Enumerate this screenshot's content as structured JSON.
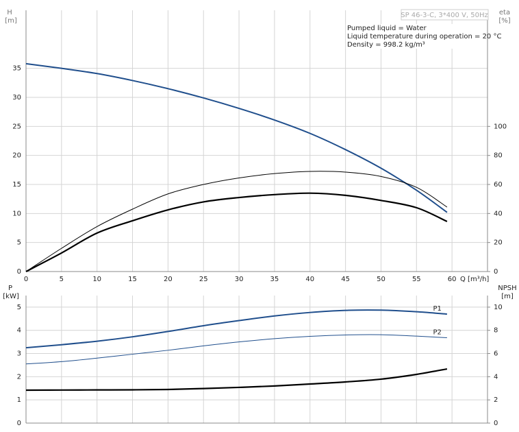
{
  "chart_data": [
    {
      "type": "line",
      "title": "SP 46-3-C, 3*400 V, 50Hz",
      "annotations": [
        "Pumped liquid = Water",
        "Liquid temperature during operation = 20 °C",
        "Density = 998.2 kg/m³"
      ],
      "x_label": "Q [m³/h]",
      "y_label": "H",
      "y_unit": "[m]",
      "y2_label": "eta",
      "y2_unit": "[%]",
      "x": [
        0,
        5,
        10,
        15,
        20,
        25,
        30,
        35,
        40,
        45,
        50,
        55,
        59.3
      ],
      "xlim": [
        0,
        65
      ],
      "xticks": [
        0,
        5,
        10,
        15,
        20,
        25,
        30,
        35,
        40,
        45,
        50,
        55,
        60
      ],
      "ylim": [
        0,
        45
      ],
      "yticks": [
        0,
        5,
        10,
        15,
        20,
        25,
        30,
        35
      ],
      "y2lim": [
        0,
        180
      ],
      "y2ticks": [
        0,
        20,
        40,
        60,
        80,
        100
      ],
      "grid": true,
      "series": [
        {
          "color": "#1f4e8c",
          "linewidth": 2,
          "values": [
            35.8,
            35,
            34.1,
            32.9,
            31.5,
            29.9,
            28.1,
            26.1,
            23.8,
            21,
            17.8,
            14,
            10.2
          ]
        },
        {
          "color": "#000000",
          "linewidth": 1,
          "axis": "y2",
          "values": [
            0,
            16,
            31,
            43,
            53.5,
            60,
            64.5,
            67.5,
            69,
            68.5,
            65.5,
            58,
            44.4
          ]
        },
        {
          "color": "#000000",
          "linewidth": 2.2,
          "axis": "y2",
          "values": [
            0,
            12.8,
            26.5,
            35,
            42.5,
            48,
            51,
            53,
            54,
            52.5,
            49,
            44,
            34.5
          ]
        }
      ]
    },
    {
      "type": "line",
      "y_label": "P",
      "y_unit": "[kW]",
      "y2_label": "NPSH",
      "y2_unit": "[m]",
      "x": [
        0,
        5,
        10,
        15,
        20,
        25,
        30,
        35,
        40,
        45,
        50,
        55,
        59.3
      ],
      "xlim": [
        0,
        65
      ],
      "ylim": [
        0,
        5.5
      ],
      "yticks": [
        0,
        1,
        2,
        3,
        4,
        5
      ],
      "y2lim": [
        0,
        11
      ],
      "y2ticks": [
        0,
        2,
        4,
        6,
        8,
        10
      ],
      "grid": true,
      "series": [
        {
          "name": "P1",
          "color": "#1f4e8c",
          "linewidth": 2,
          "values": [
            3.25,
            3.38,
            3.53,
            3.72,
            3.95,
            4.2,
            4.42,
            4.62,
            4.77,
            4.86,
            4.87,
            4.8,
            4.7
          ]
        },
        {
          "name": "P2",
          "color": "#1f4e8c",
          "linewidth": 1,
          "values": [
            2.55,
            2.65,
            2.8,
            2.97,
            3.14,
            3.33,
            3.5,
            3.64,
            3.74,
            3.8,
            3.81,
            3.75,
            3.68
          ]
        },
        {
          "color": "#000000",
          "linewidth": 2.2,
          "axis": "y2",
          "values": [
            2.84,
            2.85,
            2.86,
            2.87,
            2.9,
            2.98,
            3.08,
            3.2,
            3.37,
            3.55,
            3.79,
            4.2,
            4.67
          ]
        }
      ]
    }
  ]
}
